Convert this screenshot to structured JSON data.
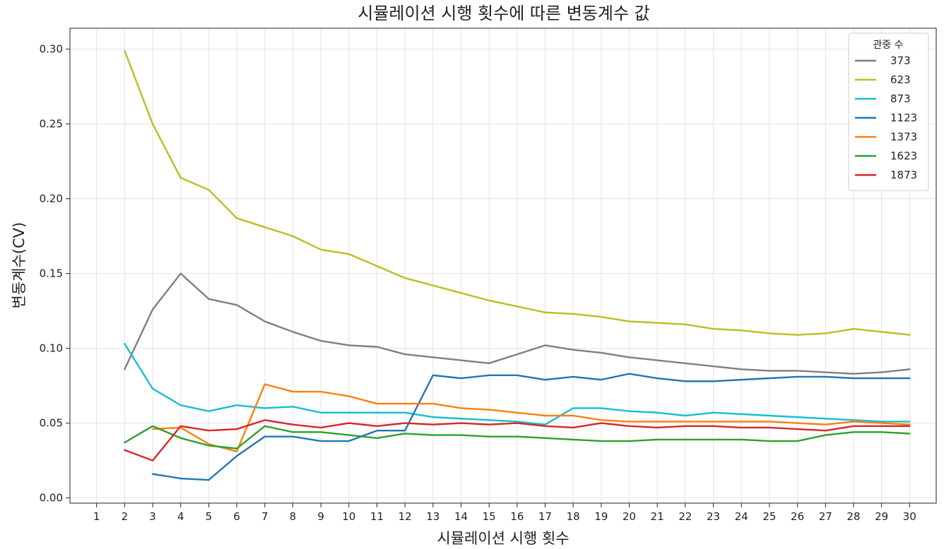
{
  "chart_data": {
    "type": "line",
    "title": "시뮬레이션 시행 횟수에 따른 변동계수 값",
    "xlabel": "시뮬레이션 시행 횟수",
    "ylabel": "변동계수(CV)",
    "xlim": [
      0.05,
      30.95
    ],
    "ylim": [
      -0.0035,
      0.314
    ],
    "x_ticks": [
      1,
      2,
      3,
      4,
      5,
      6,
      7,
      8,
      9,
      10,
      11,
      12,
      13,
      14,
      15,
      16,
      17,
      18,
      19,
      20,
      21,
      22,
      23,
      24,
      25,
      26,
      27,
      28,
      29,
      30
    ],
    "y_ticks": [
      0.0,
      0.05,
      0.1,
      0.15,
      0.2,
      0.25,
      0.3
    ],
    "grid": true,
    "legend": {
      "title": "관중 수",
      "placement": "top-right"
    },
    "x": [
      2,
      3,
      4,
      5,
      6,
      7,
      8,
      9,
      10,
      11,
      12,
      13,
      14,
      15,
      16,
      17,
      18,
      19,
      20,
      21,
      22,
      23,
      24,
      25,
      26,
      27,
      28,
      29,
      30
    ],
    "series": [
      {
        "name": "373",
        "color": "#7f7f7f",
        "values": [
          0.086,
          0.126,
          0.15,
          0.133,
          0.129,
          0.118,
          0.111,
          0.105,
          0.102,
          0.101,
          0.096,
          0.094,
          0.092,
          0.09,
          0.096,
          0.102,
          0.099,
          0.097,
          0.094,
          0.092,
          0.09,
          0.088,
          0.086,
          0.085,
          0.085,
          0.084,
          0.083,
          0.084,
          0.086
        ]
      },
      {
        "name": "623",
        "color": "#bcbd22",
        "values": [
          0.299,
          0.25,
          0.214,
          0.206,
          0.187,
          0.181,
          0.175,
          0.166,
          0.163,
          0.155,
          0.147,
          0.142,
          0.137,
          0.132,
          0.128,
          0.124,
          0.123,
          0.121,
          0.118,
          0.117,
          0.116,
          0.113,
          0.112,
          0.11,
          0.109,
          0.11,
          0.113,
          0.111,
          0.109
        ]
      },
      {
        "name": "873",
        "color": "#17becf",
        "values": [
          0.103,
          0.073,
          0.062,
          0.058,
          0.062,
          0.06,
          0.061,
          0.057,
          0.057,
          0.057,
          0.057,
          0.054,
          0.053,
          0.052,
          0.051,
          0.049,
          0.06,
          0.06,
          0.058,
          0.057,
          0.055,
          0.057,
          0.056,
          0.055,
          0.054,
          0.053,
          0.052,
          0.051,
          0.051
        ]
      },
      {
        "name": "1123",
        "color": "#1f77b4",
        "values": [
          null,
          0.016,
          0.013,
          0.012,
          0.028,
          0.041,
          0.041,
          0.038,
          0.038,
          0.045,
          0.045,
          0.082,
          0.08,
          0.082,
          0.082,
          0.079,
          0.081,
          0.079,
          0.083,
          0.08,
          0.078,
          0.078,
          0.079,
          0.08,
          0.081,
          0.081,
          0.08,
          0.08,
          0.08
        ]
      },
      {
        "name": "1373",
        "color": "#ff7f0e",
        "values": [
          null,
          0.046,
          0.047,
          0.036,
          0.031,
          0.076,
          0.071,
          0.071,
          0.068,
          0.063,
          0.063,
          0.063,
          0.06,
          0.059,
          0.057,
          0.055,
          0.055,
          0.052,
          0.051,
          0.051,
          0.051,
          0.051,
          0.051,
          0.051,
          0.05,
          0.049,
          0.051,
          0.05,
          0.049
        ]
      },
      {
        "name": "1623",
        "color": "#2ca02c",
        "values": [
          0.037,
          0.048,
          0.04,
          0.035,
          0.033,
          0.048,
          0.044,
          0.044,
          0.042,
          0.04,
          0.043,
          0.042,
          0.042,
          0.041,
          0.041,
          0.04,
          0.039,
          0.038,
          0.038,
          0.039,
          0.039,
          0.039,
          0.039,
          0.038,
          0.038,
          0.042,
          0.044,
          0.044,
          0.043
        ]
      },
      {
        "name": "1873",
        "color": "#d62728",
        "values": [
          0.032,
          0.025,
          0.048,
          0.045,
          0.046,
          0.052,
          0.049,
          0.047,
          0.05,
          0.048,
          0.05,
          0.049,
          0.05,
          0.049,
          0.05,
          0.048,
          0.047,
          0.05,
          0.048,
          0.047,
          0.048,
          0.048,
          0.047,
          0.047,
          0.046,
          0.045,
          0.048,
          0.048,
          0.048
        ]
      }
    ]
  }
}
